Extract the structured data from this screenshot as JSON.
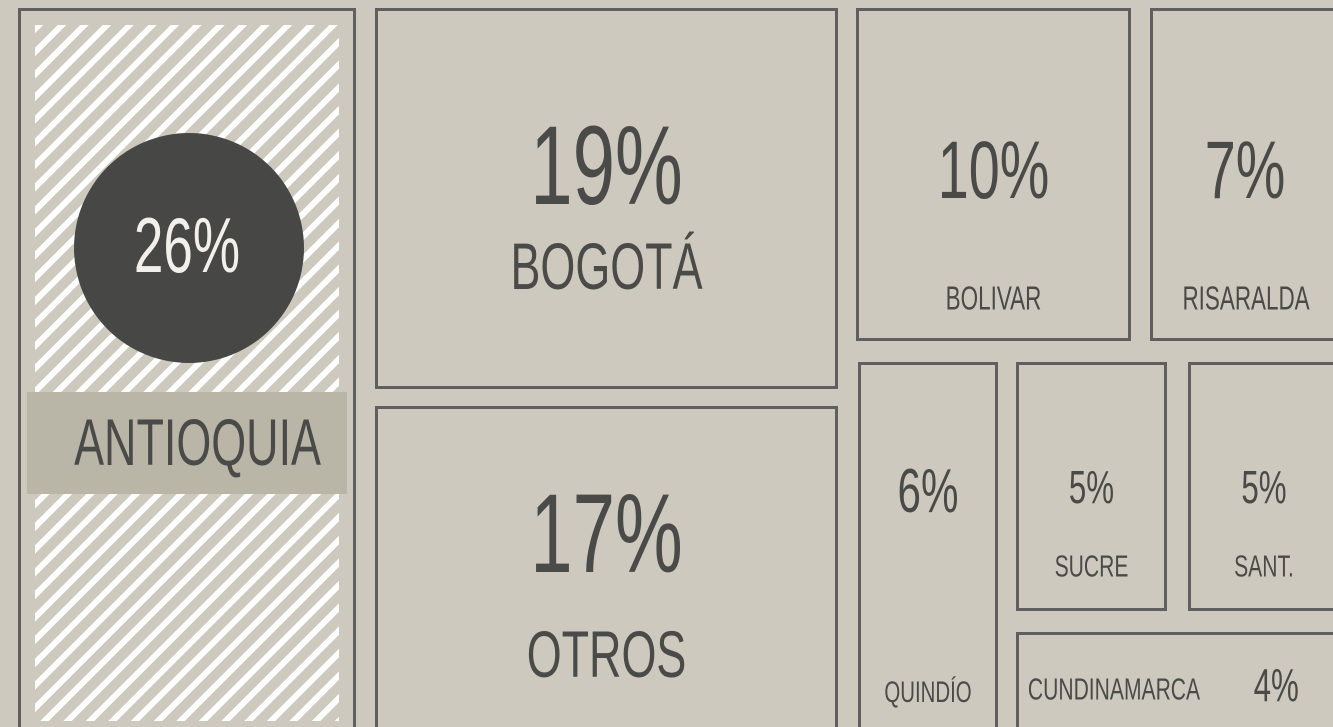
{
  "chart_data": {
    "type": "treemap",
    "categories": [
      "ANTIOQUIA",
      "BOGOTÁ",
      "OTROS",
      "BOLIVAR",
      "RISARALDA",
      "QUINDÍO",
      "SUCRE",
      "SANT.",
      "CUNDINAMARCA"
    ],
    "values": [
      26,
      19,
      17,
      10,
      7,
      6,
      5,
      5,
      4
    ],
    "value_labels": [
      "26%",
      "19%",
      "17%",
      "10%",
      "7%",
      "6%",
      "5%",
      "5%",
      "4%"
    ],
    "color": "#cdc9be"
  }
}
